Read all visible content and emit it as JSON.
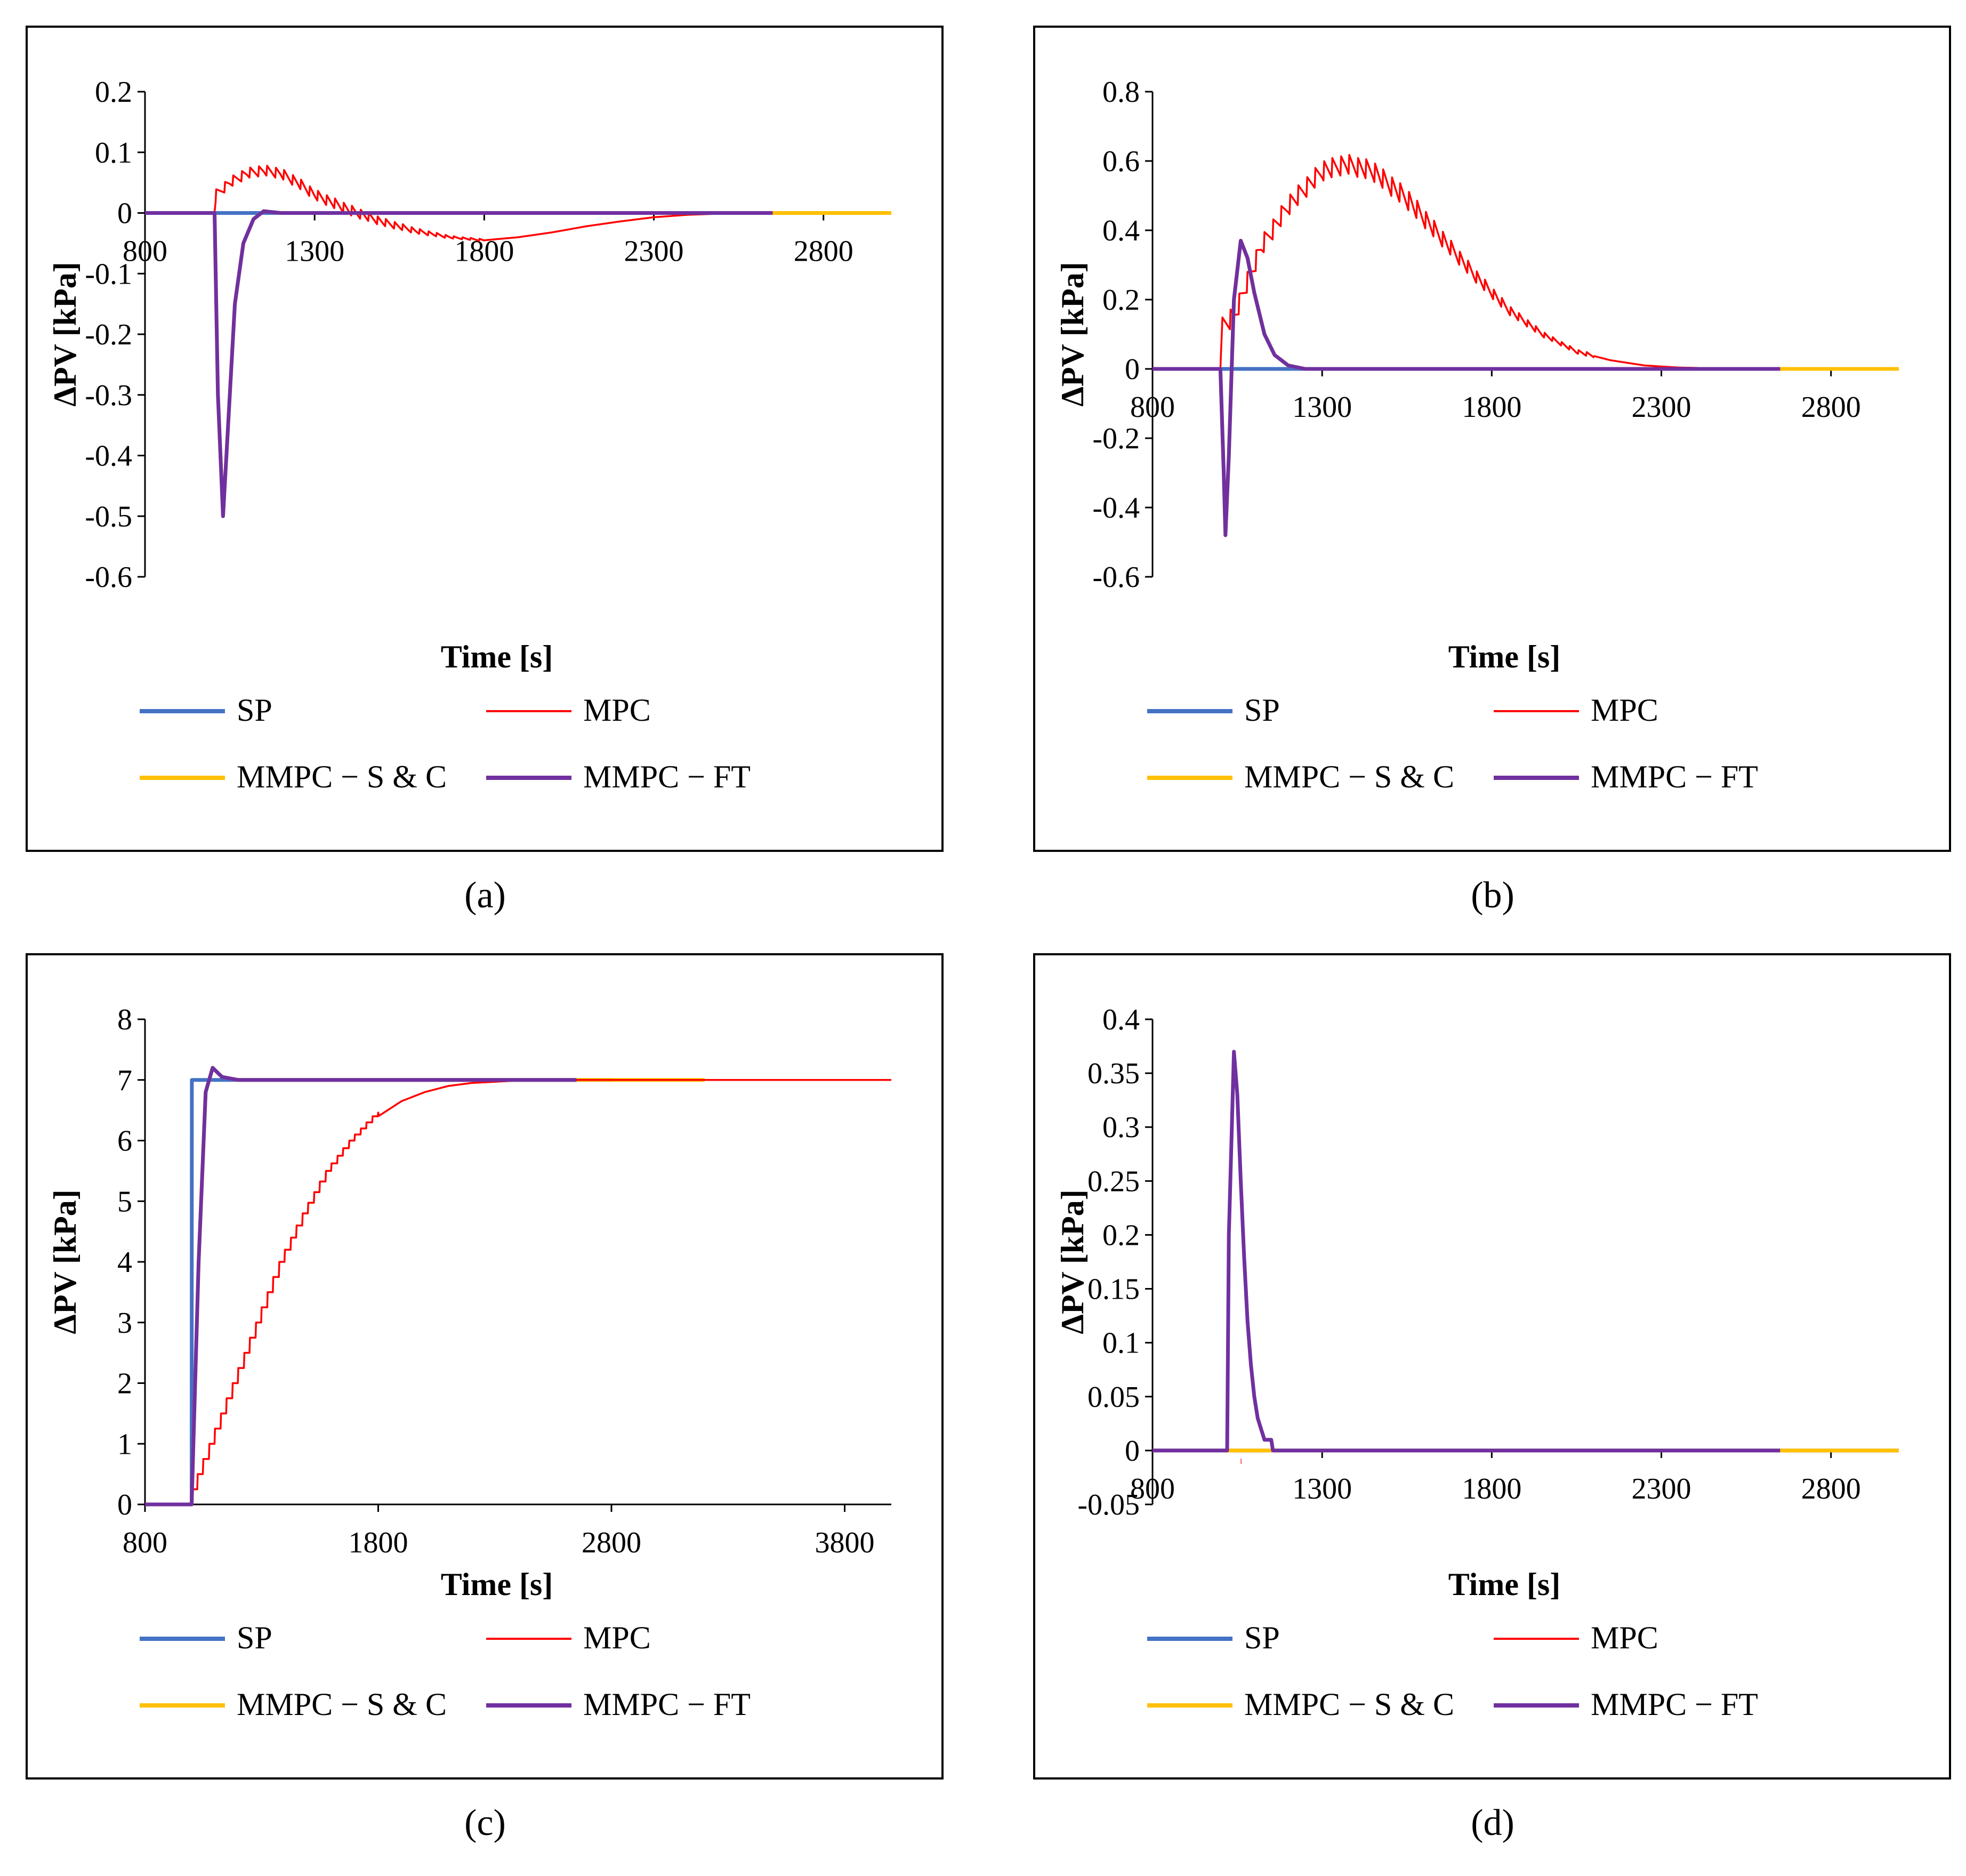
{
  "colors": {
    "SP": "#4472C4",
    "MPC": "#FF0000",
    "MMPC - S & C": "#FFC000",
    "MMPC - FT": "#7030A0"
  },
  "legend_labels": [
    "SP",
    "MPC",
    "MMPC − S & C",
    "MMPC − FT"
  ],
  "chart_data": [
    {
      "id": "a",
      "caption": "(a)",
      "type": "line",
      "xlabel": "Time [s]",
      "ylabel": "ΔPV [kPa]",
      "xlim": [
        800,
        3000
      ],
      "ylim": [
        -0.6,
        0.2
      ],
      "xticks": [
        800,
        1300,
        1800,
        2300,
        2800
      ],
      "yticks": [
        -0.6,
        -0.5,
        -0.4,
        -0.3,
        -0.2,
        -0.1,
        0,
        0.1,
        0.2
      ],
      "xticks_at_zero": true,
      "series": [
        {
          "name": "SP",
          "points": [
            [
              800,
              0
            ],
            [
              3000,
              0
            ]
          ]
        },
        {
          "name": "MMPC - S & C",
          "points": [
            [
              800,
              0
            ],
            [
              1005,
              0
            ],
            [
              1015,
              -0.3
            ],
            [
              1030,
              -0.5
            ],
            [
              1045,
              -0.35
            ],
            [
              1065,
              -0.15
            ],
            [
              1090,
              -0.05
            ],
            [
              1120,
              -0.01
            ],
            [
              1150,
              0.003
            ],
            [
              1200,
              0
            ],
            [
              3000,
              0
            ]
          ]
        },
        {
          "name": "MPC",
          "points": [
            [
              800,
              0
            ],
            [
              1005,
              0
            ],
            [
              1010,
              0.03
            ],
            [
              1050,
              0.05
            ],
            [
              1100,
              0.065
            ],
            [
              1150,
              0.07
            ],
            [
              1200,
              0.065
            ],
            [
              1250,
              0.05
            ],
            [
              1300,
              0.03
            ],
            [
              1400,
              0.005
            ],
            [
              1500,
              -0.015
            ],
            [
              1600,
              -0.03
            ],
            [
              1700,
              -0.04
            ],
            [
              1800,
              -0.045
            ],
            [
              1900,
              -0.04
            ],
            [
              2000,
              -0.032
            ],
            [
              2100,
              -0.022
            ],
            [
              2200,
              -0.014
            ],
            [
              2300,
              -0.007
            ],
            [
              2400,
              -0.003
            ],
            [
              2500,
              -0.001
            ],
            [
              2650,
              0
            ]
          ],
          "oscillation": {
            "start": 1010,
            "end": 1800,
            "period": 25,
            "amp": 0.018
          }
        },
        {
          "name": "MMPC - FT",
          "points": [
            [
              800,
              0
            ],
            [
              1005,
              0
            ],
            [
              1015,
              -0.3
            ],
            [
              1030,
              -0.5
            ],
            [
              1045,
              -0.35
            ],
            [
              1065,
              -0.15
            ],
            [
              1090,
              -0.05
            ],
            [
              1120,
              -0.01
            ],
            [
              1150,
              0.003
            ],
            [
              1200,
              0
            ],
            [
              2650,
              0
            ]
          ]
        }
      ]
    },
    {
      "id": "b",
      "caption": "(b)",
      "type": "line",
      "xlabel": "Time [s]",
      "ylabel": "ΔPV [kPa]",
      "xlim": [
        800,
        3000
      ],
      "ylim": [
        -0.6,
        0.8
      ],
      "xticks": [
        800,
        1300,
        1800,
        2300,
        2800
      ],
      "yticks": [
        -0.6,
        -0.4,
        -0.2,
        0,
        0.2,
        0.4,
        0.6,
        0.8
      ],
      "xticks_at_zero": true,
      "series": [
        {
          "name": "SP",
          "points": [
            [
              800,
              0
            ],
            [
              3000,
              0
            ]
          ]
        },
        {
          "name": "MMPC - S & C",
          "points": [
            [
              800,
              0
            ],
            [
              1000,
              0
            ],
            [
              1010,
              -0.3
            ],
            [
              1015,
              -0.48
            ],
            [
              1025,
              -0.25
            ],
            [
              1040,
              0.2
            ],
            [
              1060,
              0.37
            ],
            [
              1080,
              0.32
            ],
            [
              1100,
              0.22
            ],
            [
              1130,
              0.1
            ],
            [
              1160,
              0.04
            ],
            [
              1200,
              0.01
            ],
            [
              1250,
              0
            ],
            [
              3000,
              0
            ]
          ]
        },
        {
          "name": "MPC",
          "points": [
            [
              800,
              0
            ],
            [
              1000,
              0
            ],
            [
              1005,
              0.12
            ],
            [
              1040,
              0.15
            ],
            [
              1080,
              0.25
            ],
            [
              1120,
              0.35
            ],
            [
              1200,
              0.47
            ],
            [
              1300,
              0.57
            ],
            [
              1370,
              0.59
            ],
            [
              1450,
              0.57
            ],
            [
              1550,
              0.49
            ],
            [
              1650,
              0.38
            ],
            [
              1750,
              0.27
            ],
            [
              1850,
              0.17
            ],
            [
              1950,
              0.1
            ],
            [
              2050,
              0.05
            ],
            [
              2150,
              0.025
            ],
            [
              2250,
              0.01
            ],
            [
              2350,
              0.004
            ],
            [
              2500,
              0.001
            ],
            [
              2650,
              0
            ]
          ],
          "oscillation": {
            "start": 1005,
            "end": 2100,
            "period": 25,
            "amp": 0.06
          }
        },
        {
          "name": "MMPC - FT",
          "points": [
            [
              800,
              0
            ],
            [
              1000,
              0
            ],
            [
              1010,
              -0.3
            ],
            [
              1015,
              -0.48
            ],
            [
              1025,
              -0.25
            ],
            [
              1040,
              0.2
            ],
            [
              1060,
              0.37
            ],
            [
              1080,
              0.32
            ],
            [
              1100,
              0.22
            ],
            [
              1130,
              0.1
            ],
            [
              1160,
              0.04
            ],
            [
              1200,
              0.01
            ],
            [
              1250,
              0
            ],
            [
              2650,
              0
            ]
          ]
        }
      ]
    },
    {
      "id": "c",
      "caption": "(c)",
      "type": "line",
      "xlabel": "Time [s]",
      "ylabel": "ΔPV [kPa]",
      "xlim": [
        800,
        4000
      ],
      "ylim": [
        0,
        8
      ],
      "xticks": [
        800,
        1800,
        2800,
        3800
      ],
      "yticks": [
        0,
        1,
        2,
        3,
        4,
        5,
        6,
        7,
        8
      ],
      "xticks_at_zero": false,
      "series": [
        {
          "name": "SP",
          "points": [
            [
              800,
              0
            ],
            [
              1000,
              0
            ],
            [
              1001,
              7
            ],
            [
              2800,
              7
            ]
          ]
        },
        {
          "name": "MMPC - S & C",
          "points": [
            [
              800,
              0
            ],
            [
              1000,
              0
            ],
            [
              1030,
              4
            ],
            [
              1060,
              6.8
            ],
            [
              1090,
              7.2
            ],
            [
              1130,
              7.05
            ],
            [
              1200,
              7
            ],
            [
              3200,
              7
            ]
          ]
        },
        {
          "name": "MPC",
          "points": [
            [
              1000,
              0
            ],
            [
              1050,
              0.5
            ],
            [
              1100,
              1.0
            ],
            [
              1200,
              2.0
            ],
            [
              1300,
              3.0
            ],
            [
              1400,
              4.0
            ],
            [
              1500,
              4.8
            ],
            [
              1600,
              5.5
            ],
            [
              1700,
              6.0
            ],
            [
              1800,
              6.4
            ],
            [
              1900,
              6.65
            ],
            [
              2000,
              6.8
            ],
            [
              2100,
              6.9
            ],
            [
              2200,
              6.95
            ],
            [
              2400,
              6.99
            ],
            [
              2600,
              7
            ],
            [
              4000,
              7
            ]
          ],
          "stair": {
            "start": 1000,
            "end": 1800,
            "period": 25
          }
        },
        {
          "name": "MMPC - FT",
          "points": [
            [
              800,
              0
            ],
            [
              1000,
              0
            ],
            [
              1030,
              4
            ],
            [
              1060,
              6.8
            ],
            [
              1090,
              7.2
            ],
            [
              1130,
              7.05
            ],
            [
              1200,
              7
            ],
            [
              2650,
              7
            ]
          ]
        }
      ]
    },
    {
      "id": "d",
      "caption": "(d)",
      "type": "line",
      "xlabel": "Time [s]",
      "ylabel": "ΔPV [kPa]",
      "xlim": [
        800,
        3000
      ],
      "ylim": [
        -0.05,
        0.4
      ],
      "xticks": [
        800,
        1300,
        1800,
        2300,
        2800
      ],
      "yticks": [
        -0.05,
        0,
        0.05,
        0.1,
        0.15,
        0.2,
        0.25,
        0.3,
        0.35,
        0.4
      ],
      "xticks_at_zero": true,
      "series": [
        {
          "name": "SP",
          "points": [
            [
              800,
              0
            ],
            [
              3000,
              0
            ]
          ]
        },
        {
          "name": "MMPC - S & C",
          "points": [
            [
              800,
              0
            ],
            [
              3000,
              0
            ]
          ]
        },
        {
          "name": "MPC",
          "points": [
            [
              1060,
              -0.01
            ],
            [
              1062,
              -0.01
            ]
          ],
          "thick": true
        },
        {
          "name": "MMPC - FT",
          "points": [
            [
              800,
              0
            ],
            [
              1020,
              0
            ],
            [
              1025,
              0.2
            ],
            [
              1040,
              0.37
            ],
            [
              1050,
              0.33
            ],
            [
              1060,
              0.25
            ],
            [
              1070,
              0.18
            ],
            [
              1080,
              0.12
            ],
            [
              1090,
              0.08
            ],
            [
              1100,
              0.05
            ],
            [
              1110,
              0.03
            ],
            [
              1120,
              0.02
            ],
            [
              1130,
              0.01
            ],
            [
              1150,
              0.01
            ],
            [
              1155,
              0
            ],
            [
              2650,
              0
            ]
          ]
        }
      ]
    }
  ]
}
